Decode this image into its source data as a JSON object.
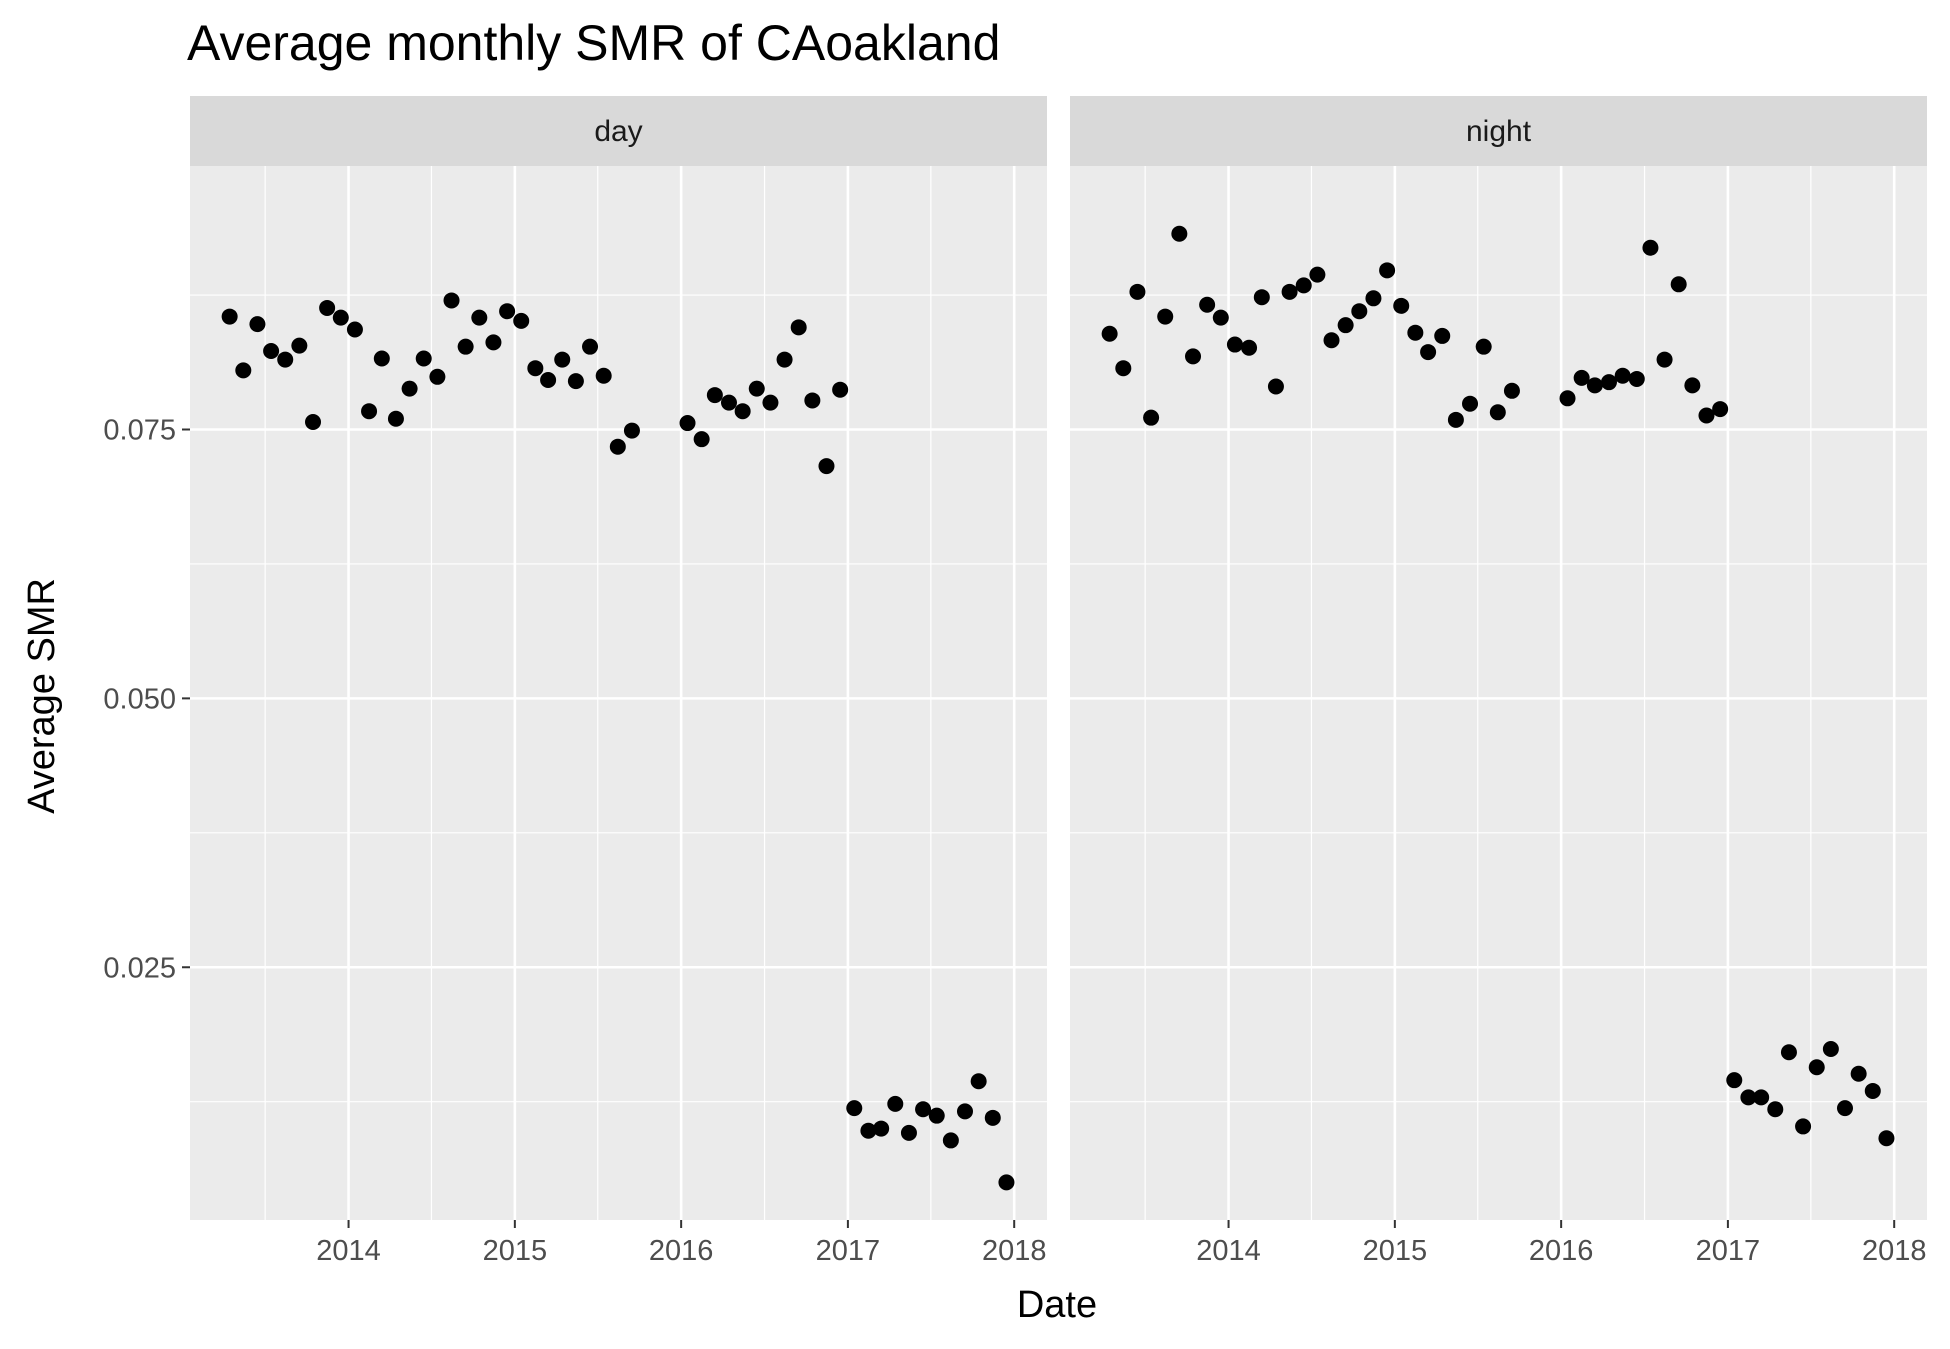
{
  "chart_data": {
    "type": "scatter",
    "title": "Average monthly SMR of CAoakland",
    "xlabel": "Date",
    "ylabel": "Average SMR",
    "x_ticks": [
      "2014",
      "2015",
      "2016",
      "2017",
      "2018"
    ],
    "y_ticks": [
      "0.025",
      "0.050",
      "0.075"
    ],
    "xlim": [
      "2013-01-18",
      "2018-03-14"
    ],
    "ylim": [
      0.0015,
      0.0995
    ],
    "grid": true,
    "legend": "none",
    "point_color": "#000000",
    "panels": [
      {
        "name": "day",
        "points": [
          {
            "x": "2013-04",
            "y": 0.0855
          },
          {
            "x": "2013-05",
            "y": 0.0805
          },
          {
            "x": "2013-06",
            "y": 0.0848
          },
          {
            "x": "2013-07",
            "y": 0.0823
          },
          {
            "x": "2013-08",
            "y": 0.0815
          },
          {
            "x": "2013-09",
            "y": 0.0828
          },
          {
            "x": "2013-10",
            "y": 0.0757
          },
          {
            "x": "2013-11",
            "y": 0.0863
          },
          {
            "x": "2013-12",
            "y": 0.0854
          },
          {
            "x": "2014-01",
            "y": 0.0843
          },
          {
            "x": "2014-02",
            "y": 0.0767
          },
          {
            "x": "2014-03",
            "y": 0.0816
          },
          {
            "x": "2014-04",
            "y": 0.076
          },
          {
            "x": "2014-05",
            "y": 0.0788
          },
          {
            "x": "2014-06",
            "y": 0.0816
          },
          {
            "x": "2014-07",
            "y": 0.0799
          },
          {
            "x": "2014-08",
            "y": 0.087
          },
          {
            "x": "2014-09",
            "y": 0.0827
          },
          {
            "x": "2014-10",
            "y": 0.0854
          },
          {
            "x": "2014-11",
            "y": 0.0831
          },
          {
            "x": "2014-12",
            "y": 0.086
          },
          {
            "x": "2015-01",
            "y": 0.0851
          },
          {
            "x": "2015-02",
            "y": 0.0807
          },
          {
            "x": "2015-03",
            "y": 0.0796
          },
          {
            "x": "2015-04",
            "y": 0.0815
          },
          {
            "x": "2015-05",
            "y": 0.0795
          },
          {
            "x": "2015-06",
            "y": 0.0827
          },
          {
            "x": "2015-07",
            "y": 0.08
          },
          {
            "x": "2015-08",
            "y": 0.0734
          },
          {
            "x": "2015-09",
            "y": 0.0749
          },
          {
            "x": "2016-01",
            "y": 0.0756
          },
          {
            "x": "2016-02",
            "y": 0.0741
          },
          {
            "x": "2016-03",
            "y": 0.0782
          },
          {
            "x": "2016-04",
            "y": 0.0775
          },
          {
            "x": "2016-05",
            "y": 0.0767
          },
          {
            "x": "2016-06",
            "y": 0.0788
          },
          {
            "x": "2016-07",
            "y": 0.0775
          },
          {
            "x": "2016-08",
            "y": 0.0815
          },
          {
            "x": "2016-09",
            "y": 0.0845
          },
          {
            "x": "2016-10",
            "y": 0.0777
          },
          {
            "x": "2016-11",
            "y": 0.0716
          },
          {
            "x": "2016-12",
            "y": 0.0787
          },
          {
            "x": "2017-01",
            "y": 0.0119
          },
          {
            "x": "2017-02",
            "y": 0.0098
          },
          {
            "x": "2017-03",
            "y": 0.01
          },
          {
            "x": "2017-04",
            "y": 0.0123
          },
          {
            "x": "2017-05",
            "y": 0.0096
          },
          {
            "x": "2017-06",
            "y": 0.0118
          },
          {
            "x": "2017-07",
            "y": 0.0112
          },
          {
            "x": "2017-08",
            "y": 0.0089
          },
          {
            "x": "2017-09",
            "y": 0.0116
          },
          {
            "x": "2017-10",
            "y": 0.0144
          },
          {
            "x": "2017-11",
            "y": 0.011
          },
          {
            "x": "2017-12",
            "y": 0.005
          }
        ]
      },
      {
        "name": "night",
        "points": [
          {
            "x": "2013-04",
            "y": 0.0839
          },
          {
            "x": "2013-05",
            "y": 0.0807
          },
          {
            "x": "2013-06",
            "y": 0.0878
          },
          {
            "x": "2013-07",
            "y": 0.0761
          },
          {
            "x": "2013-08",
            "y": 0.0855
          },
          {
            "x": "2013-09",
            "y": 0.0932
          },
          {
            "x": "2013-10",
            "y": 0.0818
          },
          {
            "x": "2013-11",
            "y": 0.0866
          },
          {
            "x": "2013-12",
            "y": 0.0854
          },
          {
            "x": "2014-01",
            "y": 0.0829
          },
          {
            "x": "2014-02",
            "y": 0.0826
          },
          {
            "x": "2014-03",
            "y": 0.0873
          },
          {
            "x": "2014-04",
            "y": 0.079
          },
          {
            "x": "2014-05",
            "y": 0.0878
          },
          {
            "x": "2014-06",
            "y": 0.0884
          },
          {
            "x": "2014-07",
            "y": 0.0894
          },
          {
            "x": "2014-08",
            "y": 0.0833
          },
          {
            "x": "2014-09",
            "y": 0.0847
          },
          {
            "x": "2014-10",
            "y": 0.086
          },
          {
            "x": "2014-11",
            "y": 0.0872
          },
          {
            "x": "2014-12",
            "y": 0.0898
          },
          {
            "x": "2015-01",
            "y": 0.0865
          },
          {
            "x": "2015-02",
            "y": 0.084
          },
          {
            "x": "2015-03",
            "y": 0.0822
          },
          {
            "x": "2015-04",
            "y": 0.0837
          },
          {
            "x": "2015-05",
            "y": 0.0759
          },
          {
            "x": "2015-06",
            "y": 0.0774
          },
          {
            "x": "2015-07",
            "y": 0.0827
          },
          {
            "x": "2015-08",
            "y": 0.0766
          },
          {
            "x": "2015-09",
            "y": 0.0786
          },
          {
            "x": "2016-01",
            "y": 0.0779
          },
          {
            "x": "2016-02",
            "y": 0.0798
          },
          {
            "x": "2016-03",
            "y": 0.0791
          },
          {
            "x": "2016-04",
            "y": 0.0794
          },
          {
            "x": "2016-05",
            "y": 0.08
          },
          {
            "x": "2016-06",
            "y": 0.0797
          },
          {
            "x": "2016-07",
            "y": 0.0919
          },
          {
            "x": "2016-08",
            "y": 0.0815
          },
          {
            "x": "2016-09",
            "y": 0.0885
          },
          {
            "x": "2016-10",
            "y": 0.0791
          },
          {
            "x": "2016-11",
            "y": 0.0763
          },
          {
            "x": "2016-12",
            "y": 0.0769
          },
          {
            "x": "2017-01",
            "y": 0.0145
          },
          {
            "x": "2017-02",
            "y": 0.0129
          },
          {
            "x": "2017-03",
            "y": 0.0129
          },
          {
            "x": "2017-04",
            "y": 0.0118
          },
          {
            "x": "2017-05",
            "y": 0.0171
          },
          {
            "x": "2017-06",
            "y": 0.0102
          },
          {
            "x": "2017-07",
            "y": 0.0157
          },
          {
            "x": "2017-08",
            "y": 0.0174
          },
          {
            "x": "2017-09",
            "y": 0.0119
          },
          {
            "x": "2017-10",
            "y": 0.0151
          },
          {
            "x": "2017-11",
            "y": 0.0135
          },
          {
            "x": "2017-12",
            "y": 0.0091
          }
        ]
      }
    ]
  }
}
